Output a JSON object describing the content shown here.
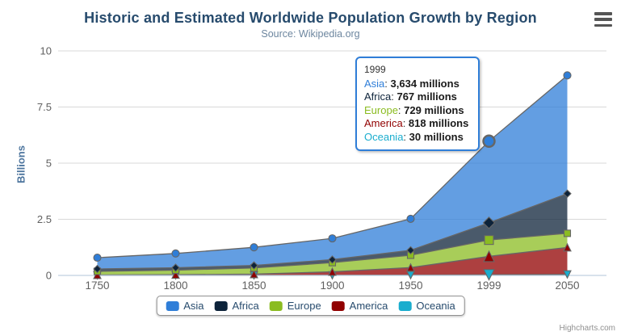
{
  "chart": {
    "title": "Historic and Estimated Worldwide Population Growth by Region",
    "subtitle": "Source: Wikipedia.org",
    "y_axis_title": "Billions",
    "credits": "Highcharts.com",
    "export_menu_icon": "hamburger-menu"
  },
  "colors": {
    "line": "#666666",
    "grid": "#d8d8d8",
    "axis_line": "#c0d0e0",
    "title": "#274b6d",
    "subtitle": "#6d869f",
    "axis_label": "#606060",
    "y_axis_title": "#4d759e",
    "legend_text": "#274b6d",
    "tooltip_border": "#2f7ed8",
    "credits_text": "#909090"
  },
  "chart_data": {
    "type": "area",
    "stacking": "normal",
    "title": "Historic and Estimated Worldwide Population Growth by Region",
    "subtitle": "Source: Wikipedia.org",
    "xlabel": "",
    "ylabel": "Billions",
    "unit": "millions",
    "categories": [
      "1750",
      "1800",
      "1850",
      "1900",
      "1950",
      "1999",
      "2050"
    ],
    "series": [
      {
        "name": "Asia",
        "color": "#2f7ed8",
        "marker": "circle",
        "values": [
          502,
          635,
          809,
          947,
          1402,
          3634,
          5268
        ]
      },
      {
        "name": "Africa",
        "color": "#0d233a",
        "marker": "diamond",
        "values": [
          106,
          107,
          111,
          133,
          221,
          767,
          1766
        ]
      },
      {
        "name": "Europe",
        "color": "#8bbc21",
        "marker": "square",
        "values": [
          163,
          203,
          276,
          408,
          547,
          729,
          628
        ]
      },
      {
        "name": "America",
        "color": "#910000",
        "marker": "triangle",
        "values": [
          18,
          31,
          54,
          156,
          339,
          818,
          1201
        ]
      },
      {
        "name": "Oceania",
        "color": "#1aadce",
        "marker": "triangle-down",
        "values": [
          2,
          2,
          2,
          6,
          13,
          30,
          46
        ]
      }
    ],
    "stack_order_bottom_to_top": [
      "Oceania",
      "America",
      "Europe",
      "Africa",
      "Asia"
    ],
    "yticks": [
      0,
      2.5,
      5,
      7.5,
      10
    ],
    "ylim": [
      0,
      10
    ],
    "fill_opacity": 0.75,
    "grid": true,
    "legend_position": "bottom-center",
    "hover_index": 5
  },
  "tooltip": {
    "header": "1999",
    "rows": [
      {
        "name": "Asia",
        "value": "3,634 millions"
      },
      {
        "name": "Africa",
        "value": "767 millions"
      },
      {
        "name": "Europe",
        "value": "729 millions"
      },
      {
        "name": "America",
        "value": "818 millions"
      },
      {
        "name": "Oceania",
        "value": "30 millions"
      }
    ]
  }
}
